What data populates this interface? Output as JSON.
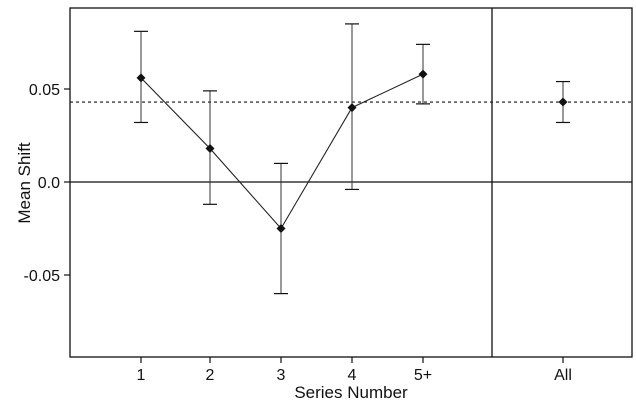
{
  "chart_data": {
    "type": "scatter",
    "xlabel": "Series Number",
    "ylabel": "Mean Shift",
    "ylim": [
      -0.095,
      0.095
    ],
    "yticks": [
      0.05,
      0.0,
      -0.05
    ],
    "ytick_labels": [
      "0.05",
      "0.0",
      "-0.05"
    ],
    "reference_lines": {
      "zero": 0.0,
      "overall_mean_dashed": 0.043
    },
    "series": [
      {
        "categories": [
          "1",
          "2",
          "3",
          "4",
          "5+"
        ],
        "values": [
          0.056,
          0.018,
          -0.025,
          0.04,
          0.058
        ],
        "lower": [
          0.032,
          -0.012,
          -0.06,
          -0.004,
          0.042
        ],
        "upper": [
          0.081,
          0.049,
          0.01,
          0.085,
          0.074
        ],
        "connected": true
      },
      {
        "categories": [
          "All"
        ],
        "values": [
          0.043
        ],
        "lower": [
          0.032
        ],
        "upper": [
          0.054
        ],
        "connected": false
      }
    ],
    "grid": false
  }
}
